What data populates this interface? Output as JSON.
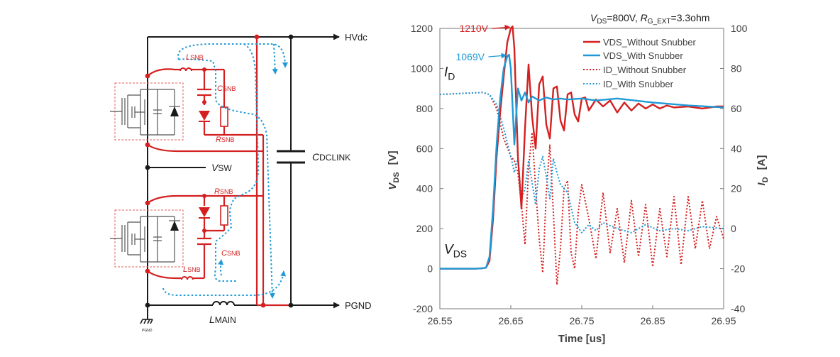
{
  "schematic": {
    "labels": {
      "hvdc": "HVdc",
      "pgnd": "PGND",
      "pgnd_small": "PGND",
      "vsw": {
        "main": "V",
        "sub": "SW"
      },
      "cdclink": {
        "main": "C",
        "sub": "DCLINK"
      },
      "lmain": {
        "main": "L",
        "sub": "MAIN"
      },
      "lsnb_top": {
        "main": "L",
        "sub": "SNB"
      },
      "csnb_top": {
        "main": "C",
        "sub": "SNB"
      },
      "rsnb_top": {
        "main": "R",
        "sub": "SNB"
      },
      "rsnb_bot": {
        "main": "R",
        "sub": "SNB"
      },
      "csnb_bot": {
        "main": "C",
        "sub": "SNB"
      },
      "lsnb_bot": {
        "main": "L",
        "sub": "SNB"
      }
    },
    "colors": {
      "wire": "#1a1a1a",
      "snubber": "#d42020",
      "current": "#1f9ad6",
      "box": "#e06060"
    }
  },
  "chart_data": {
    "type": "line",
    "title": {
      "v": "V",
      "v_sub": "DS",
      "eq1": "=800V, ",
      "r": "R",
      "r_sub": "G_EXT",
      "eq2": "=3.3ohm"
    },
    "xlabel": "Time [us]",
    "ylabel_left": {
      "main": "V",
      "sub": "DS",
      "unit": "[V]"
    },
    "ylabel_right": {
      "main": "I",
      "sub": "D",
      "unit": "[A]"
    },
    "xlim": [
      26.55,
      26.95
    ],
    "ylim_left": [
      -200,
      1200
    ],
    "ylim_right": [
      -40,
      100
    ],
    "x_ticks": [
      "26.55",
      "26.65",
      "26.75",
      "26.85",
      "26.95"
    ],
    "y_left_ticks": [
      "-200",
      "0",
      "200",
      "400",
      "600",
      "800",
      "1000",
      "1200"
    ],
    "y_right_ticks": [
      "-40",
      "-20",
      "0",
      "20",
      "40",
      "60",
      "80",
      "100"
    ],
    "grid": false,
    "legend_position": "top-right",
    "annotations": [
      {
        "text": "1210V",
        "x": 26.6525,
        "y": 1210,
        "color": "#d42020"
      },
      {
        "text": "1069V",
        "x": 26.6475,
        "y": 1069,
        "color": "#1f9ad6"
      },
      {
        "text_main": "I",
        "text_sub": "D",
        "x": 26.556,
        "y": 960
      },
      {
        "text_main": "V",
        "text_sub": "DS",
        "x": 26.556,
        "y": 75
      }
    ],
    "series": [
      {
        "name": "VDS_Without Snubber",
        "axis": "left",
        "color": "#d42020",
        "style": "solid",
        "x": [
          26.55,
          26.6,
          26.61,
          26.615,
          26.62,
          26.625,
          26.63,
          26.635,
          26.64,
          26.645,
          26.65,
          26.6525,
          26.655,
          26.66,
          26.665,
          26.67,
          26.675,
          26.68,
          26.685,
          26.69,
          26.695,
          26.7,
          26.705,
          26.71,
          26.715,
          26.72,
          26.725,
          26.73,
          26.735,
          26.74,
          26.745,
          26.75,
          26.755,
          26.76,
          26.77,
          26.78,
          26.79,
          26.8,
          26.81,
          26.82,
          26.83,
          26.84,
          26.85,
          26.86,
          26.87,
          26.88,
          26.9,
          26.92,
          26.94,
          26.95
        ],
        "y": [
          0,
          0,
          2,
          5,
          40,
          250,
          560,
          780,
          960,
          1130,
          1200,
          1210,
          1100,
          560,
          300,
          700,
          1020,
          760,
          600,
          920,
          960,
          720,
          650,
          900,
          910,
          740,
          690,
          870,
          880,
          770,
          735,
          850,
          855,
          790,
          845,
          810,
          840,
          780,
          830,
          790,
          825,
          800,
          820,
          800,
          815,
          805,
          810,
          800,
          810,
          810
        ]
      },
      {
        "name": "VDS_With Snubber",
        "axis": "left",
        "color": "#1f9ad6",
        "style": "solid",
        "x": [
          26.55,
          26.6,
          26.61,
          26.615,
          26.62,
          26.625,
          26.63,
          26.635,
          26.64,
          26.645,
          26.6475,
          26.65,
          26.655,
          26.66,
          26.665,
          26.67,
          26.675,
          26.68,
          26.69,
          26.7,
          26.71,
          26.72,
          26.73,
          26.75,
          26.77,
          26.8,
          26.85,
          26.9,
          26.95
        ],
        "y": [
          0,
          0,
          2,
          5,
          60,
          300,
          620,
          850,
          1000,
          1060,
          1069,
          1000,
          620,
          900,
          840,
          880,
          830,
          860,
          840,
          855,
          845,
          850,
          845,
          850,
          840,
          850,
          830,
          815,
          805
        ]
      },
      {
        "name": "ID_Without Snubber",
        "axis": "right",
        "color": "#d42020",
        "style": "dotted",
        "x": [
          26.55,
          26.61,
          26.62,
          26.63,
          26.64,
          26.65,
          26.655,
          26.66,
          26.665,
          26.67,
          26.675,
          26.68,
          26.685,
          26.69,
          26.695,
          26.7,
          26.705,
          26.71,
          26.715,
          26.72,
          26.725,
          26.73,
          26.735,
          26.74,
          26.745,
          26.75,
          26.76,
          26.77,
          26.78,
          26.79,
          26.8,
          26.81,
          26.82,
          26.83,
          26.84,
          26.85,
          26.86,
          26.87,
          26.88,
          26.89,
          26.9,
          26.91,
          26.92,
          26.93,
          26.94,
          26.95
        ],
        "y": [
          67,
          68,
          67,
          60,
          45,
          36,
          34,
          28,
          12,
          -8,
          30,
          48,
          20,
          -5,
          -22,
          18,
          42,
          8,
          -28,
          -10,
          20,
          24,
          -12,
          -20,
          8,
          22,
          5,
          -15,
          18,
          -12,
          10,
          -17,
          14,
          -14,
          12,
          -19,
          10,
          -14,
          16,
          -18,
          16,
          -10,
          14,
          -10,
          6,
          -5
        ]
      },
      {
        "name": "ID_With Snubber",
        "axis": "right",
        "color": "#1f9ad6",
        "style": "dotted",
        "x": [
          26.55,
          26.61,
          26.62,
          26.63,
          26.64,
          26.65,
          26.655,
          26.66,
          26.665,
          26.67,
          26.675,
          26.68,
          26.685,
          26.69,
          26.695,
          26.7,
          26.705,
          26.71,
          26.715,
          26.72,
          26.73,
          26.74,
          26.75,
          26.76,
          26.77,
          26.78,
          26.8,
          26.82,
          26.84,
          26.86,
          26.88,
          26.9,
          26.92,
          26.95
        ],
        "y": [
          67,
          68,
          67,
          62,
          50,
          36,
          28,
          35,
          15,
          20,
          34,
          23,
          12,
          30,
          36,
          26,
          15,
          35,
          28,
          22,
          18,
          3,
          -2,
          2,
          -1,
          3,
          0,
          -2,
          2,
          -1,
          0,
          -1,
          1,
          0
        ]
      }
    ]
  }
}
